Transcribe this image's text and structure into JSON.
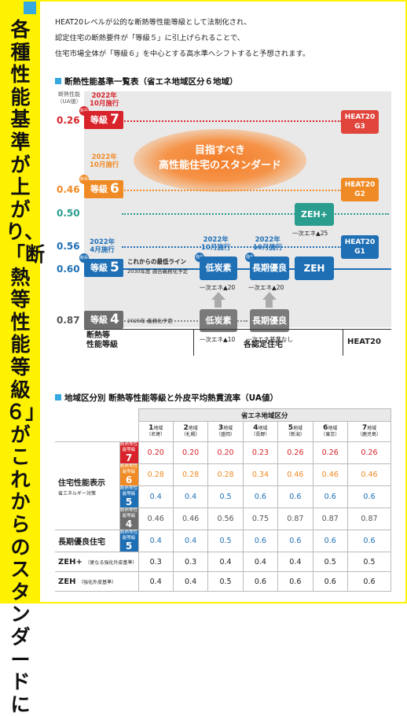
{
  "sidebar": {
    "title": "各種性能基準が上がり、「断熱等性能等級６」がこれからのスタンダードに"
  },
  "intro": {
    "line1": "HEAT20レベルが公的な断熱等性能等級として法制化され、",
    "line2": "認定住宅の断熱要件が「等級５」に引上げられることで、",
    "line3": "住宅市場全体が「等級６」を中心とする高水準へシフトすると予想されます。"
  },
  "section1": {
    "title": "断熱性能基準一覧表（省エネ地域区分６地域）"
  },
  "chart_data": {
    "type": "table",
    "title": "断熱性能基準一覧表（省エネ地域区分６地域）",
    "yaxis_label_1": "断熱性能",
    "yaxis_label_2": "（UA値）",
    "ua_values": [
      "0.26",
      "0.46",
      "0.50",
      "0.56",
      "0.60",
      "0.87"
    ],
    "grades": [
      {
        "label": "等級",
        "num": "7",
        "ua": "0.26",
        "date1": "2022年",
        "date2": "10月施行",
        "badge": "新設"
      },
      {
        "label": "等級",
        "num": "6",
        "ua": "0.46",
        "date1": "2022年",
        "date2": "10月施行",
        "badge": "新設"
      },
      {
        "label": "等級",
        "num": "5",
        "ua": "0.60",
        "date1": "2022年",
        "date2": "4月施行",
        "badge": "新設"
      },
      {
        "label": "等級",
        "num": "4",
        "ua": "0.87",
        "date1": "",
        "date2": "",
        "badge": ""
      }
    ],
    "heat20": [
      {
        "line1": "HEAT20",
        "line2": "G3",
        "ua": "0.26"
      },
      {
        "line1": "HEAT20",
        "line2": "G2",
        "ua": "0.46"
      },
      {
        "line1": "HEAT20",
        "line2": "G1",
        "ua": "0.56"
      }
    ],
    "glow_line1": "目指すべき",
    "glow_line2": "高性能住宅のスタンダード",
    "grade5_note1": "これからの最低ライン",
    "grade5_note2": "2030年度 適合義務化予定",
    "grade4_note": "2025年 義務化予定",
    "zehplus": {
      "label": "ZEH+",
      "note": "一次エネ▲25"
    },
    "zeh": {
      "label": "ZEH"
    },
    "upper": [
      {
        "label": "低炭素",
        "note": "一次エネ▲20",
        "badge": "強化",
        "date1": "2022年",
        "date2": "10月施行"
      },
      {
        "label": "長期優良",
        "note": "一次エネ▲20",
        "badge": "強化",
        "date1": "2022年",
        "date2": "10月施行"
      }
    ],
    "lower": [
      {
        "label": "低炭素",
        "note": "一次エネ▲10"
      },
      {
        "label": "長期優良",
        "note": "一次エネ基準なし"
      }
    ],
    "footer": {
      "col1a": "断熱等",
      "col1b": "性能等級",
      "col2": "各認定住宅",
      "col3": "HEAT20"
    },
    "colors": {
      "g7": "#d8232a",
      "g6": "#f08a24",
      "g5": "#1f6fb5",
      "g4": "#6e6e6e",
      "zeh": "#2a9d8f",
      "heat20": "#e0443a"
    }
  },
  "section2": {
    "title": "地域区分別 断熱等性能等級と外皮平均熱貫流率（UA値）"
  },
  "table": {
    "zone_header": "省エネ地域区分",
    "regions": [
      {
        "num": "1",
        "word": "地域",
        "city": "（名寄）"
      },
      {
        "num": "2",
        "word": "地域",
        "city": "（札幌）"
      },
      {
        "num": "3",
        "word": "地域",
        "city": "（盛岡）"
      },
      {
        "num": "4",
        "word": "地域",
        "city": "（長野）"
      },
      {
        "num": "5",
        "word": "地域",
        "city": "（新潟）"
      },
      {
        "num": "6",
        "word": "地域",
        "city": "（東京）"
      },
      {
        "num": "7",
        "word": "地域",
        "city": "（鹿児島）"
      }
    ],
    "gtag": "断熱等性能等級",
    "cat1": "住宅性能表示",
    "cat1_sub": "省エネルギー対策",
    "rows": [
      {
        "grade": "7",
        "values": [
          "0.20",
          "0.20",
          "0.20",
          "0.23",
          "0.26",
          "0.26",
          "0.26"
        ]
      },
      {
        "grade": "6",
        "values": [
          "0.28",
          "0.28",
          "0.28",
          "0.34",
          "0.46",
          "0.46",
          "0.46"
        ]
      },
      {
        "grade": "5",
        "values": [
          "0.4",
          "0.4",
          "0.5",
          "0.6",
          "0.6",
          "0.6",
          "0.6"
        ]
      },
      {
        "grade": "4",
        "values": [
          "0.46",
          "0.46",
          "0.56",
          "0.75",
          "0.87",
          "0.87",
          "0.87"
        ]
      }
    ],
    "cat2": "長期優良住宅",
    "cat2_grade": "5",
    "cat2_values": [
      "0.4",
      "0.4",
      "0.5",
      "0.6",
      "0.6",
      "0.6",
      "0.6"
    ],
    "cat3": "ZEH+",
    "cat3_sub": "（更なる強化外皮基準）",
    "cat3_values": [
      "0.3",
      "0.3",
      "0.4",
      "0.4",
      "0.4",
      "0.5",
      "0.5"
    ],
    "cat4": "ZEH",
    "cat4_sub": "（強化外皮基準）",
    "cat4_values": [
      "0.4",
      "0.4",
      "0.5",
      "0.6",
      "0.6",
      "0.6",
      "0.6"
    ]
  }
}
